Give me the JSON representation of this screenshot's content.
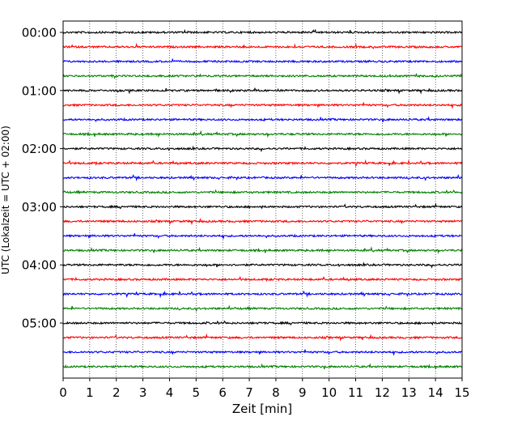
{
  "chart_data": {
    "type": "line",
    "title": "",
    "xlabel": "Zeit  [min]",
    "ylabel": "UTC (Lokalzeit = UTC + 02:00)",
    "xlim": [
      0,
      15
    ],
    "x_ticks": [
      "0",
      "1",
      "2",
      "3",
      "4",
      "5",
      "6",
      "7",
      "8",
      "9",
      "10",
      "11",
      "12",
      "13",
      "14",
      "15"
    ],
    "y_tick_labels": [
      "00:00",
      "01:00",
      "02:00",
      "03:00",
      "04:00",
      "05:00"
    ],
    "trace_minutes_start": [
      0,
      15,
      30,
      45,
      60,
      75,
      90,
      105,
      120,
      135,
      150,
      165,
      180,
      195,
      210,
      225,
      240,
      255,
      270,
      285,
      300,
      315,
      330,
      345
    ],
    "trace_colors": [
      "#000000",
      "#ff0000",
      "#0000ff",
      "#008000"
    ],
    "grid": {
      "x": "dotted vertical lines at each minute",
      "y": false
    },
    "legend": "none"
  }
}
